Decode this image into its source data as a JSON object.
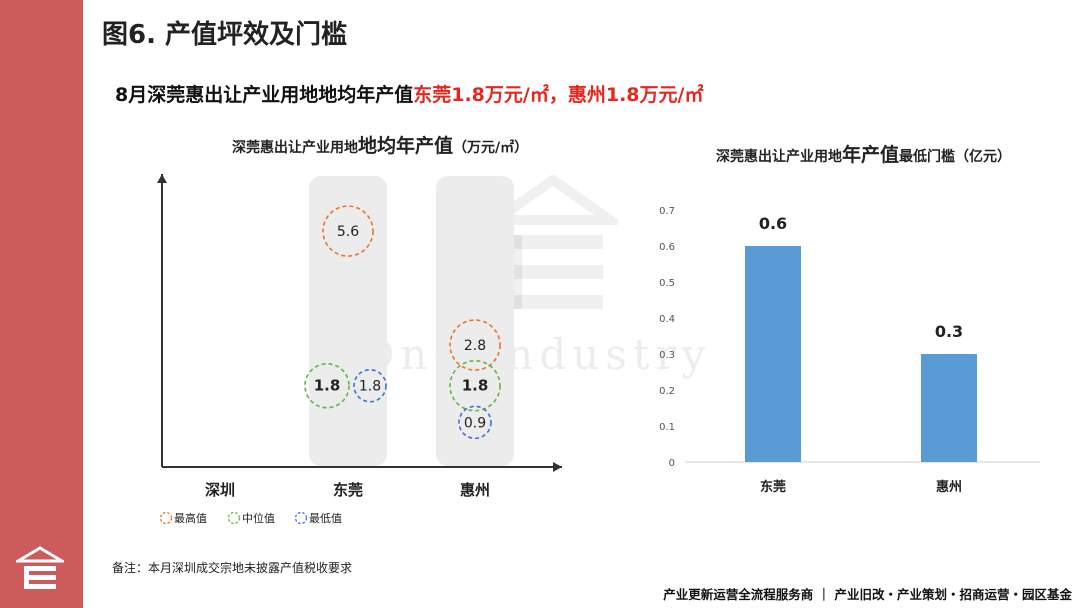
{
  "page_title": "图6. 产值坪效及门槛",
  "headline": {
    "prefix": "8月深莞惠出让产业用地地均年产值",
    "dg_value": "东莞1.8万元/㎡",
    "separator": "，",
    "hz_value": "惠州1.8万元/㎡"
  },
  "watermark": "One Industry",
  "note": "备注：本月深圳成交宗地未披露产值税收要求",
  "footer": "产业更新运营全流程服务商 ｜ 产业旧改・产业策划・招商运营・园区基金",
  "colors": {
    "band": "#cc5b5b",
    "highlight": "#e8261d",
    "max": "#e8742a",
    "median": "#5fb54a",
    "min": "#3f6fd1",
    "bar": "#5b9bd5"
  },
  "chart_data": [
    {
      "type": "scatter",
      "title_small": "深莞惠出让产业用地",
      "title_big": "地均年产值",
      "title_unit": "（万元/㎡）",
      "categories": [
        "深圳",
        "东莞",
        "惠州"
      ],
      "series": [
        {
          "name": "最高值",
          "values": [
            null,
            5.6,
            2.8
          ]
        },
        {
          "name": "中位值",
          "values": [
            null,
            1.8,
            1.8
          ]
        },
        {
          "name": "最低值",
          "values": [
            null,
            1.8,
            0.9
          ]
        }
      ],
      "ylim": [
        0,
        7
      ],
      "legend_position": "bottom-left"
    },
    {
      "type": "bar",
      "title_small1": "深莞惠出让产业用地",
      "title_big": "年产值",
      "title_small2": "最低门槛（亿元）",
      "categories": [
        "东莞",
        "惠州"
      ],
      "values": [
        0.6,
        0.3
      ],
      "value_labels": [
        "0.6",
        "0.3"
      ],
      "yticks": [
        "0",
        "0.1",
        "0.2",
        "0.3",
        "0.4",
        "0.5",
        "0.6",
        "0.7"
      ],
      "ylim": [
        0,
        0.7
      ]
    }
  ]
}
